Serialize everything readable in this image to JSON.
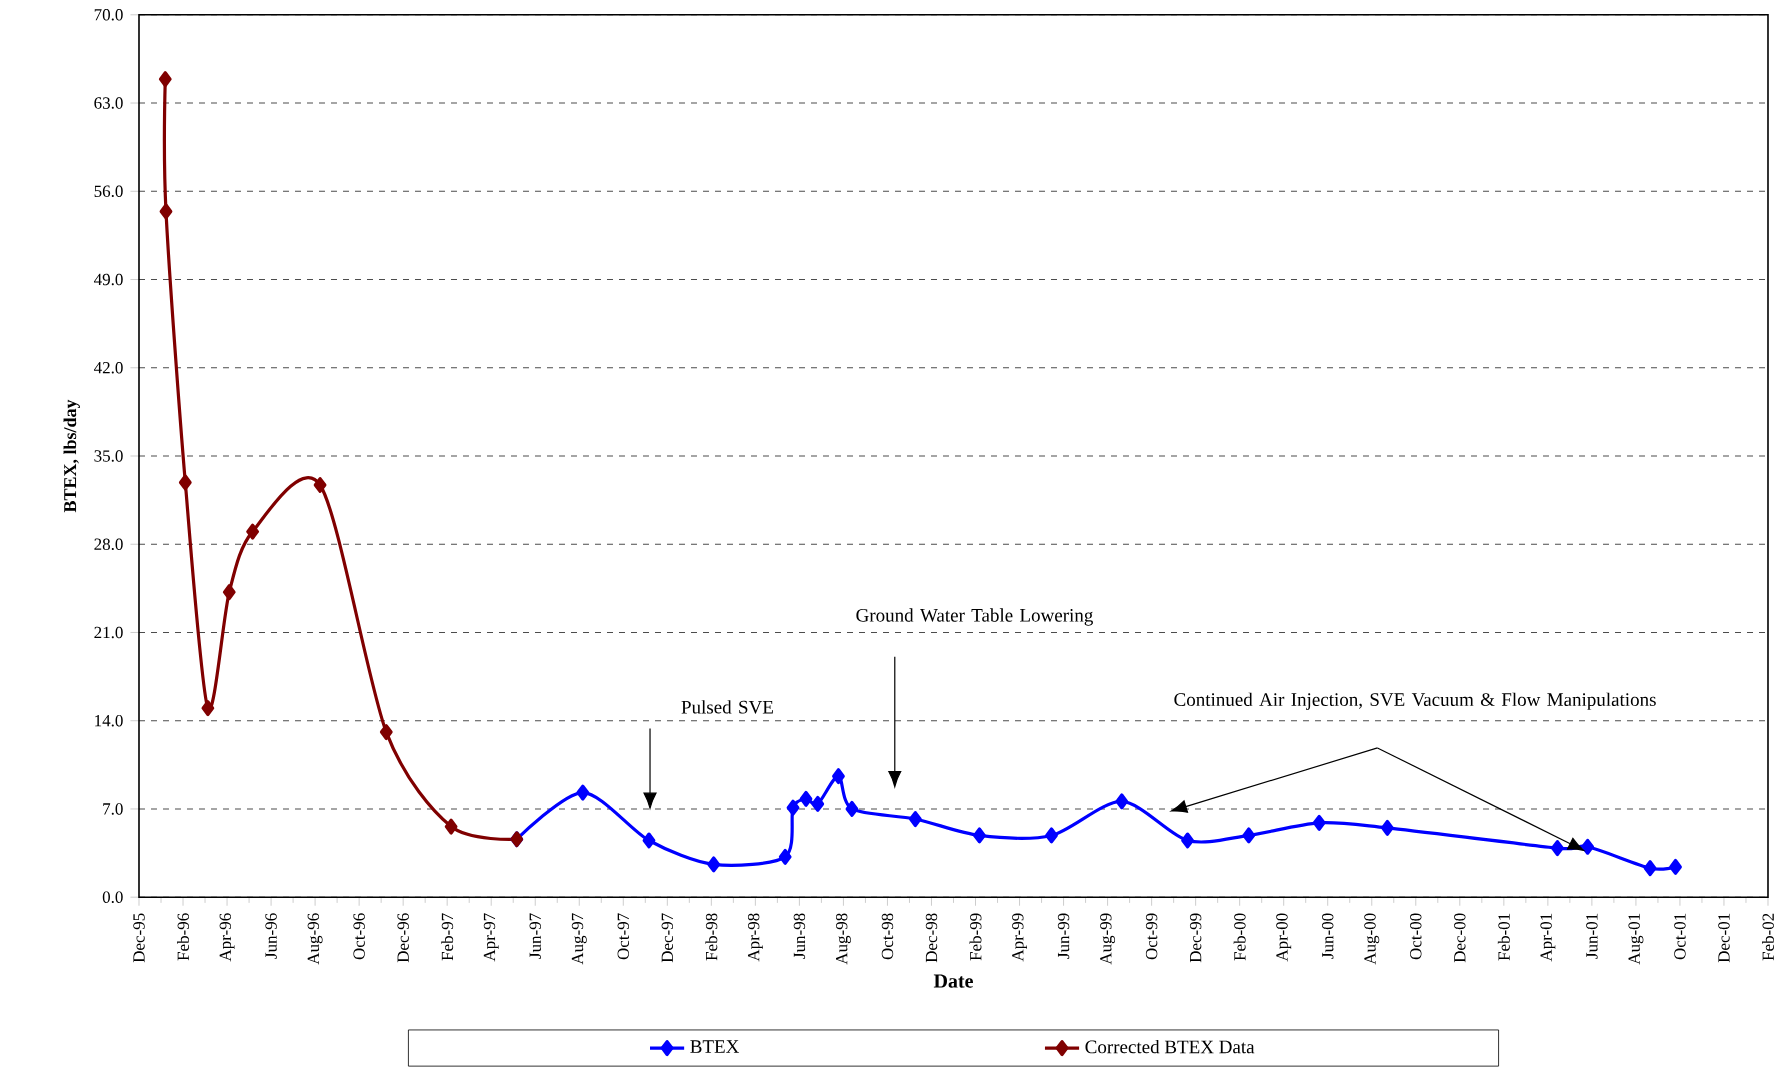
{
  "chart_data": {
    "type": "line",
    "xlabel": "Date",
    "ylabel": "BTEX, lbs/day",
    "x": [
      "1996-01-07",
      "1996-01-08",
      "1996-02-04",
      "1996-03-05",
      "1996-04-04",
      "1996-05-06",
      "1996-08-08",
      "1996-11-08",
      "1997-02-06",
      "1997-05-06"
    ],
    "series": [
      {
        "name": "BTEX",
        "color": "#0000ff",
        "x": [
          "1997-05-06",
          "1997-08-06",
          "1997-11-06",
          "1998-02-04",
          "1998-05-12",
          "1998-05-23",
          "1998-06-10",
          "1998-06-26",
          "1998-07-25",
          "1998-08-13",
          "1998-11-09",
          "1999-02-06",
          "1999-05-15",
          "1999-08-21",
          "1999-11-20",
          "2000-02-13",
          "2000-05-20",
          "2000-08-23",
          "2001-04-14",
          "2001-05-26",
          "2001-08-21",
          "2001-09-25"
        ],
        "values": [
          4.6,
          8.3,
          4.5,
          2.6,
          3.2,
          7.1,
          7.8,
          7.4,
          9.6,
          7.0,
          6.2,
          4.9,
          4.9,
          7.6,
          4.5,
          4.9,
          5.9,
          5.5,
          3.9,
          4.0,
          2.3,
          2.4
        ]
      },
      {
        "name": "Corrected BTEX Data",
        "color": "#800000",
        "values": [
          64.9,
          54.4,
          32.9,
          15.0,
          24.2,
          29.0,
          32.7,
          13.1,
          5.6,
          4.6
        ]
      }
    ],
    "xlim": [
      "1995-12-01",
      "2002-02-01"
    ],
    "xticks": [
      {
        "value": "1995-12-01",
        "label": "Dec-95"
      },
      {
        "value": "1996-02-01",
        "label": "Feb-96"
      },
      {
        "value": "1996-04-01",
        "label": "Apr-96"
      },
      {
        "value": "1996-06-01",
        "label": "Jun-96"
      },
      {
        "value": "1996-08-01",
        "label": "Aug-96"
      },
      {
        "value": "1996-10-01",
        "label": "Oct-96"
      },
      {
        "value": "1996-12-01",
        "label": "Dec-96"
      },
      {
        "value": "1997-02-01",
        "label": "Feb-97"
      },
      {
        "value": "1997-04-01",
        "label": "Apr-97"
      },
      {
        "value": "1997-06-01",
        "label": "Jun-97"
      },
      {
        "value": "1997-08-01",
        "label": "Aug-97"
      },
      {
        "value": "1997-10-01",
        "label": "Oct-97"
      },
      {
        "value": "1997-12-01",
        "label": "Dec-97"
      },
      {
        "value": "1998-02-01",
        "label": "Feb-98"
      },
      {
        "value": "1998-04-01",
        "label": "Apr-98"
      },
      {
        "value": "1998-06-01",
        "label": "Jun-98"
      },
      {
        "value": "1998-08-01",
        "label": "Aug-98"
      },
      {
        "value": "1998-10-01",
        "label": "Oct-98"
      },
      {
        "value": "1998-12-01",
        "label": "Dec-98"
      },
      {
        "value": "1999-02-01",
        "label": "Feb-99"
      },
      {
        "value": "1999-04-01",
        "label": "Apr-99"
      },
      {
        "value": "1999-06-01",
        "label": "Jun-99"
      },
      {
        "value": "1999-08-01",
        "label": "Aug-99"
      },
      {
        "value": "1999-10-01",
        "label": "Oct-99"
      },
      {
        "value": "1999-12-01",
        "label": "Dec-99"
      },
      {
        "value": "2000-02-01",
        "label": "Feb-00"
      },
      {
        "value": "2000-04-01",
        "label": "Apr-00"
      },
      {
        "value": "2000-06-01",
        "label": "Jun-00"
      },
      {
        "value": "2000-08-01",
        "label": "Aug-00"
      },
      {
        "value": "2000-10-01",
        "label": "Oct-00"
      },
      {
        "value": "2000-12-01",
        "label": "Dec-00"
      },
      {
        "value": "2001-02-01",
        "label": "Feb-01"
      },
      {
        "value": "2001-04-01",
        "label": "Apr-01"
      },
      {
        "value": "2001-06-01",
        "label": "Jun-01"
      },
      {
        "value": "2001-08-01",
        "label": "Aug-01"
      },
      {
        "value": "2001-10-01",
        "label": "Oct-01"
      },
      {
        "value": "2001-12-01",
        "label": "Dec-01"
      },
      {
        "value": "2002-02-01",
        "label": "Feb-02"
      }
    ],
    "ylim": [
      0,
      70
    ],
    "yticks": [
      {
        "value": 0,
        "label": "0.0"
      },
      {
        "value": 7,
        "label": "7.0"
      },
      {
        "value": 14,
        "label": "14.0"
      },
      {
        "value": 21,
        "label": "21.0"
      },
      {
        "value": 28,
        "label": "28.0"
      },
      {
        "value": 35,
        "label": "35.0"
      },
      {
        "value": 42,
        "label": "42.0"
      },
      {
        "value": 49,
        "label": "49.0"
      },
      {
        "value": 56,
        "label": "56.0"
      },
      {
        "value": 63,
        "label": "63.0"
      },
      {
        "value": 70,
        "label": "70.0"
      }
    ],
    "grid": "y",
    "legend": "bottom",
    "marker": "diamond",
    "line_style": "solid",
    "annotations": [
      "Pulsed SVE",
      "Ground Water Table Lowering",
      "Continued Air Injection, SVE Vacuum & Flow Manipulations"
    ]
  }
}
